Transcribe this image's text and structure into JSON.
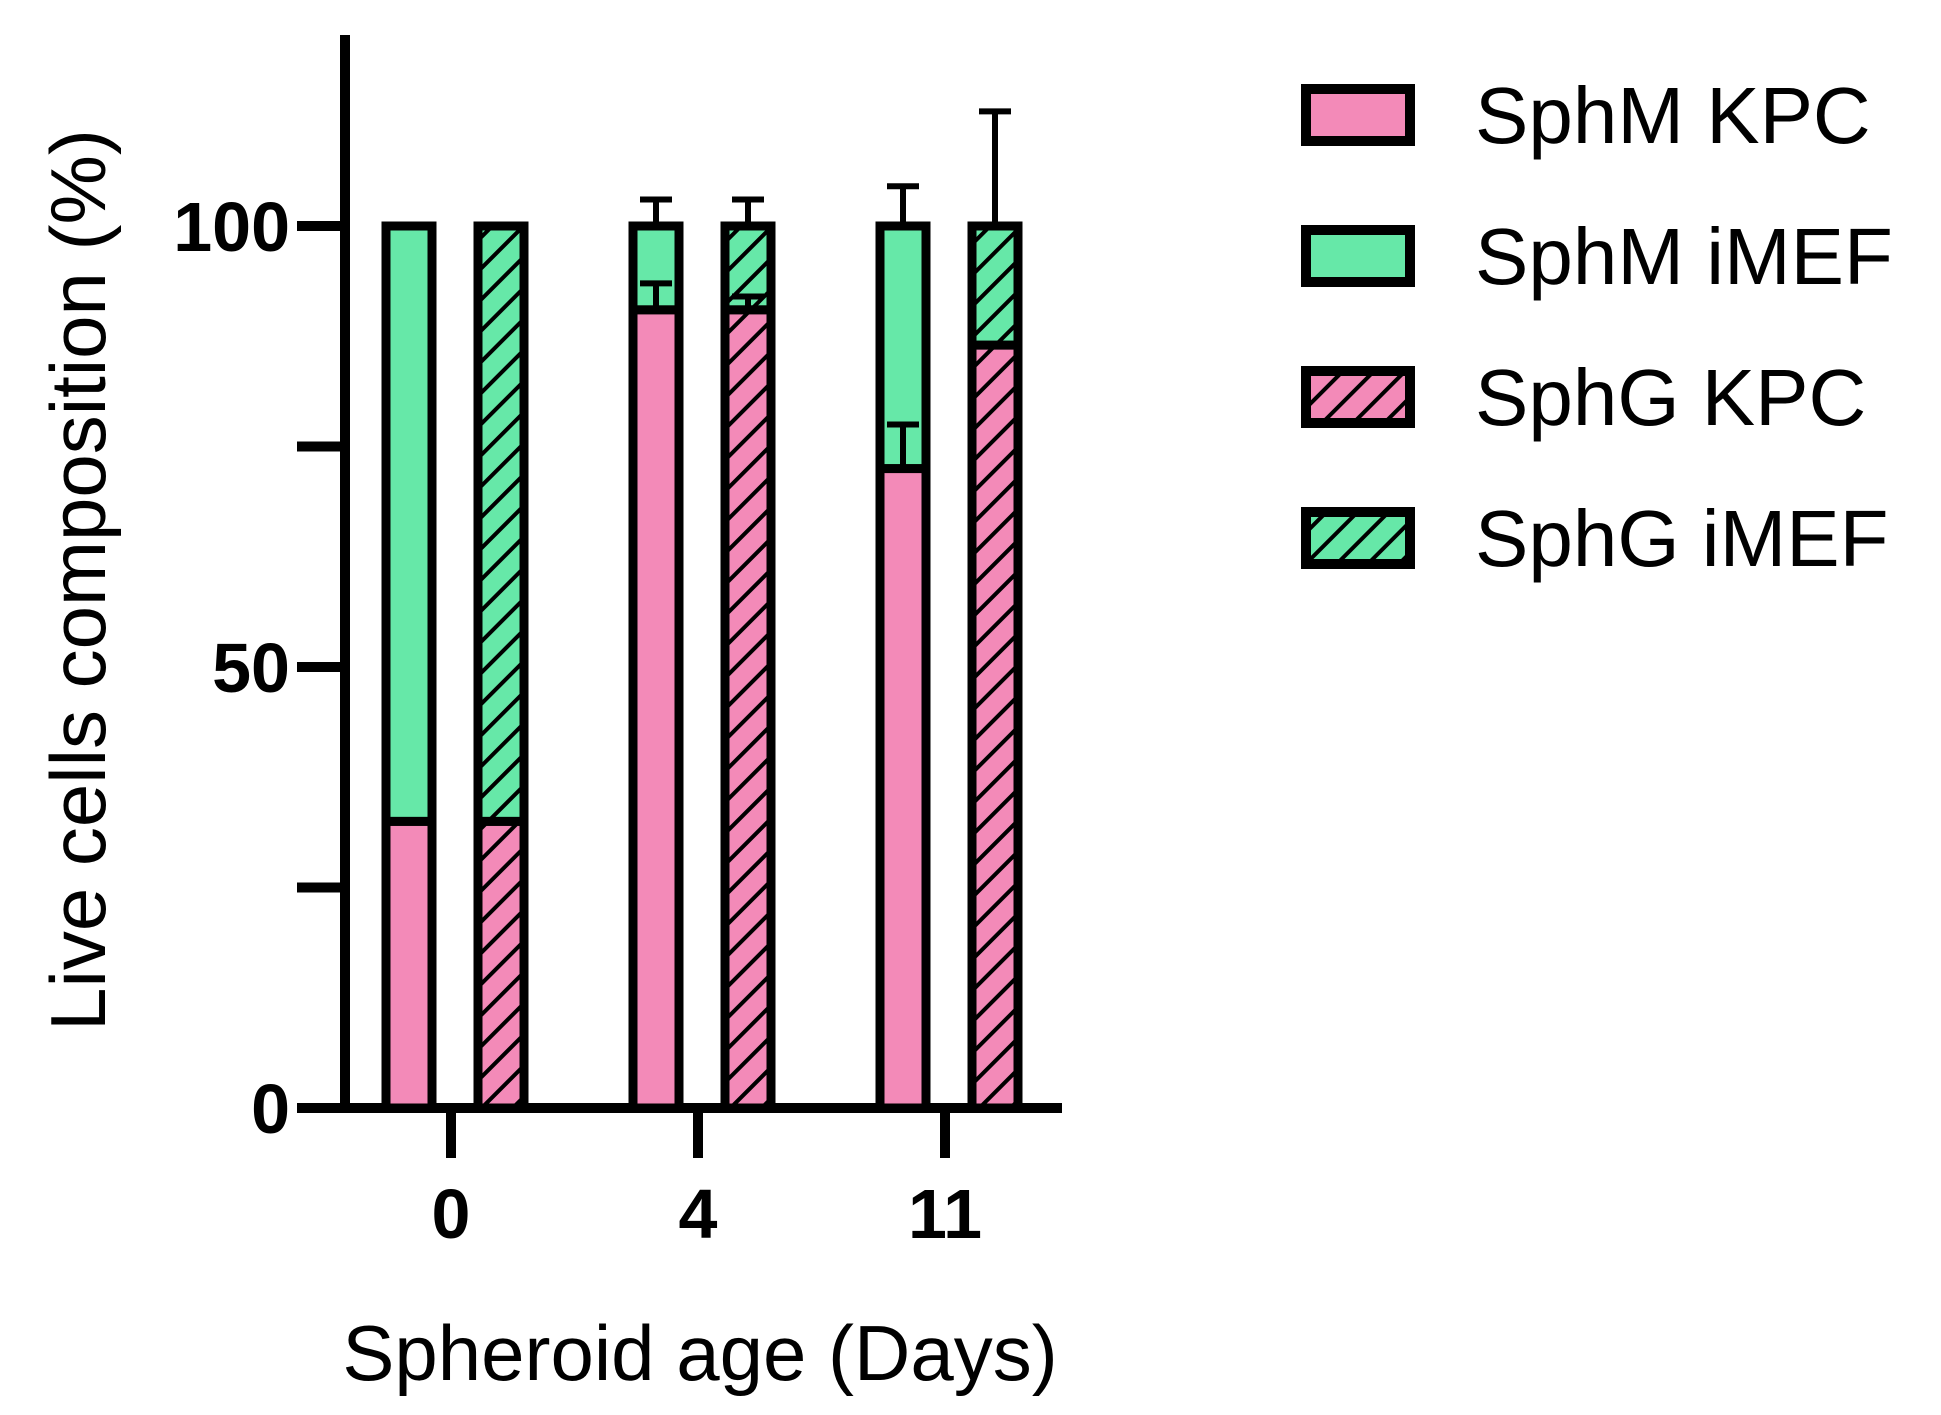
{
  "chart_data": {
    "type": "bar",
    "stacked": true,
    "title": "",
    "xlabel": "Spheroid age (Days)",
    "ylabel": "Live cells composition (%)",
    "ylim": [
      0,
      120
    ],
    "yticks": [
      0,
      25,
      50,
      75,
      100
    ],
    "ytick_labels": [
      "0",
      "",
      "50",
      "",
      "100"
    ],
    "categories": [
      "0",
      "4",
      "11"
    ],
    "groups": [
      {
        "name": "SphM",
        "pattern": "solid",
        "stack": [
          {
            "series": "SphM KPC",
            "values": [
              32.5,
              90.5,
              72.5
            ],
            "error_up": [
              0,
              3,
              5
            ]
          },
          {
            "series": "SphM iMEF",
            "values": [
              67.5,
              9.5,
              27.5
            ],
            "error_up": [
              0,
              3,
              4.5
            ]
          }
        ]
      },
      {
        "name": "SphG",
        "pattern": "hatched",
        "stack": [
          {
            "series": "SphG KPC",
            "values": [
              32.5,
              90.5,
              86.5
            ],
            "error_up": [
              0,
              1.5,
              0
            ]
          },
          {
            "series": "SphG iMEF",
            "values": [
              67.5,
              9.5,
              13.5
            ],
            "error_up": [
              0,
              3,
              13
            ]
          }
        ]
      }
    ],
    "legend": {
      "position": "top-right",
      "entries": [
        {
          "label": "SphM KPC",
          "color": "#f38ab8",
          "pattern": "solid"
        },
        {
          "label": "SphM iMEF",
          "color": "#66e8a8",
          "pattern": "solid"
        },
        {
          "label": "SphG KPC",
          "color": "#f38ab8",
          "pattern": "hatched"
        },
        {
          "label": "SphG iMEF",
          "color": "#66e8a8",
          "pattern": "hatched"
        }
      ]
    },
    "colors": {
      "kpc": "#f38ab8",
      "imef": "#66e8a8",
      "outline": "#000000"
    }
  }
}
